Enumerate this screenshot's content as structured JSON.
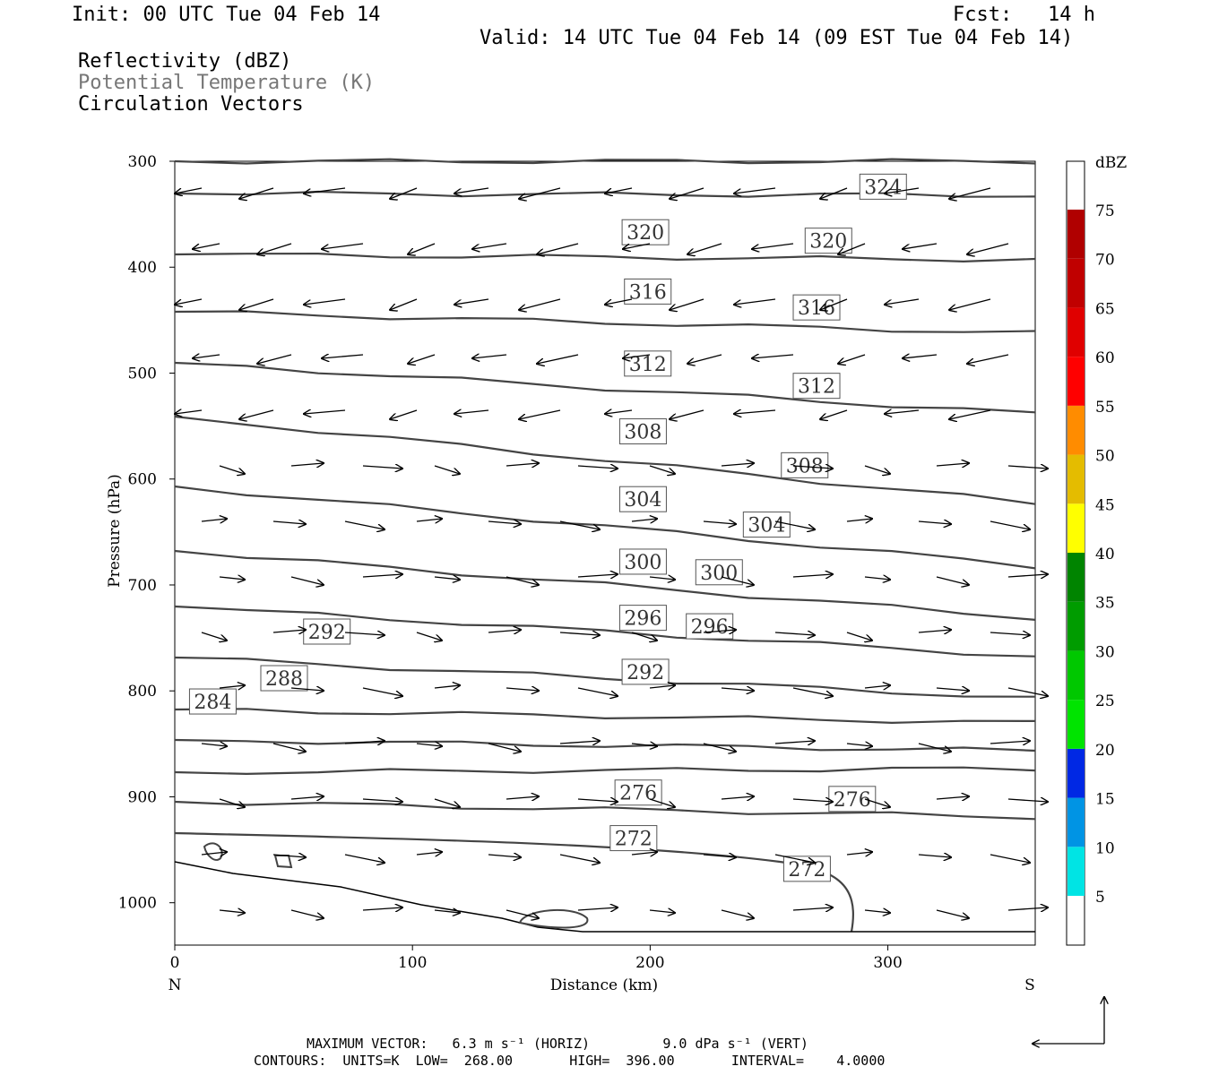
{
  "header": {
    "init": "Init: 00 UTC Tue 04 Feb 14",
    "fcst": "Fcst:   14 h",
    "valid": "Valid: 14 UTC Tue 04 Feb 14 (09 EST Tue 04 Feb 14)"
  },
  "legend": {
    "line1": "Reflectivity (dBZ)",
    "line2": "Potential Temperature (K)",
    "line3": "Circulation Vectors"
  },
  "footer": {
    "line1": "MAXIMUM VECTOR:   6.3 m s⁻¹ (HORIZ)         9.0 dPa s⁻¹ (VERT)",
    "line2": "CONTOURS:  UNITS=K  LOW=  268.00       HIGH=  396.00       INTERVAL=    4.0000"
  },
  "colors": {
    "contour": "#444444",
    "vector": "#000000"
  },
  "chart_data": {
    "type": "contour-cross-section",
    "xlabel": "Distance (km)",
    "ylabel": "Pressure (hPa)",
    "xlim": [
      0,
      362
    ],
    "ylim": [
      1040,
      300
    ],
    "x_ticks": [
      0,
      100,
      200,
      300
    ],
    "y_ticks": [
      300,
      400,
      500,
      600,
      700,
      800,
      900,
      1000
    ],
    "x_end_labels": {
      "left": "N",
      "right": "S"
    },
    "colorbar": {
      "title": "dBZ",
      "levels": [
        5,
        10,
        15,
        20,
        25,
        30,
        35,
        40,
        45,
        50,
        55,
        60,
        65,
        70,
        75
      ],
      "colors": [
        "#00e4e4",
        "#0094e4",
        "#0028e4",
        "#00e400",
        "#00c800",
        "#009c00",
        "#008400",
        "#ffff00",
        "#e4bc00",
        "#ff8c00",
        "#ff0000",
        "#e00000",
        "#c00000",
        "#b00000",
        "#ff00ff",
        "#9060c0"
      ]
    },
    "contour_labels": [
      {
        "value": "324",
        "x": 298,
        "p": 324
      },
      {
        "value": "320",
        "x": 198,
        "p": 367
      },
      {
        "value": "320",
        "x": 275,
        "p": 375
      },
      {
        "value": "316",
        "x": 199,
        "p": 423
      },
      {
        "value": "316",
        "x": 270,
        "p": 438
      },
      {
        "value": "312",
        "x": 199,
        "p": 491
      },
      {
        "value": "312",
        "x": 270,
        "p": 512
      },
      {
        "value": "308",
        "x": 197,
        "p": 555
      },
      {
        "value": "308",
        "x": 265,
        "p": 587
      },
      {
        "value": "304",
        "x": 197,
        "p": 619
      },
      {
        "value": "304",
        "x": 249,
        "p": 643
      },
      {
        "value": "300",
        "x": 197,
        "p": 678
      },
      {
        "value": "300",
        "x": 229,
        "p": 688
      },
      {
        "value": "296",
        "x": 197,
        "p": 731
      },
      {
        "value": "296",
        "x": 225,
        "p": 739
      },
      {
        "value": "292",
        "x": 64,
        "p": 744
      },
      {
        "value": "292",
        "x": 198,
        "p": 782
      },
      {
        "value": "288",
        "x": 46,
        "p": 788
      },
      {
        "value": "284",
        "x": 16,
        "p": 810
      },
      {
        "value": "276",
        "x": 195,
        "p": 896
      },
      {
        "value": "276",
        "x": 285,
        "p": 902
      },
      {
        "value": "272",
        "x": 193,
        "p": 939
      },
      {
        "value": "272",
        "x": 266,
        "p": 968
      }
    ]
  }
}
